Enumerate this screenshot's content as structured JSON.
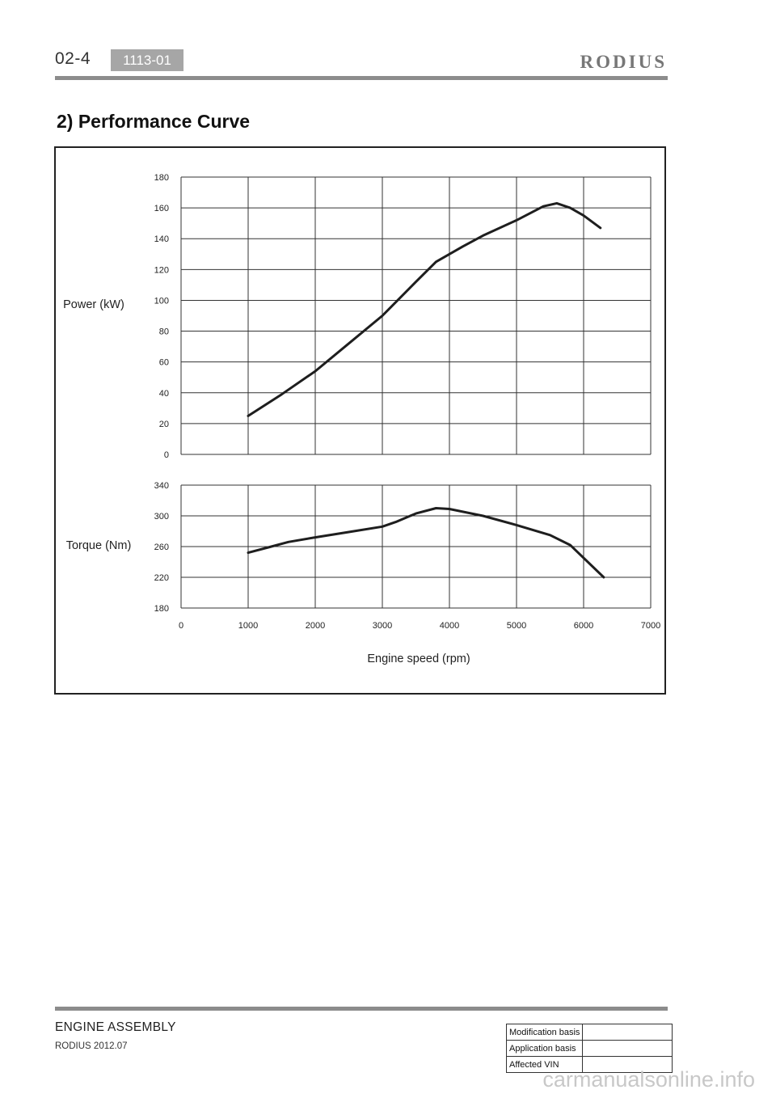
{
  "header": {
    "page_number": "02-4",
    "section_code": "1113-01",
    "brand": "RODIUS"
  },
  "section_title": "2) Performance Curve",
  "footer": {
    "section_name": "ENGINE ASSEMBLY",
    "model_date": "RODIUS 2012.07",
    "basis_table": [
      {
        "label": "Modification basis",
        "value": ""
      },
      {
        "label": "Application basis",
        "value": ""
      },
      {
        "label": "Affected VIN",
        "value": ""
      }
    ]
  },
  "watermark": "carmanualsonline.info",
  "chart_data": [
    {
      "type": "line",
      "ylabel": "Power (kW)",
      "xlabel": "",
      "ylim": [
        0,
        180
      ],
      "yticks": [
        0,
        20,
        40,
        60,
        80,
        100,
        120,
        140,
        160,
        180
      ],
      "xlim": [
        0,
        7000
      ],
      "grid": true,
      "series": [
        {
          "x": [
            1000,
            1500,
            2000,
            2500,
            3000,
            3500,
            3800,
            4200,
            4500,
            5000,
            5400,
            5600,
            5800,
            6000,
            6250
          ],
          "y": [
            25,
            39,
            54,
            72,
            90,
            112,
            125,
            135,
            142,
            152,
            161,
            163,
            160,
            155,
            147
          ]
        }
      ]
    },
    {
      "type": "line",
      "ylabel": "Torque (Nm)",
      "xlabel": "Engine speed (rpm)",
      "ylim": [
        180,
        340
      ],
      "yticks": [
        180,
        220,
        260,
        300,
        340
      ],
      "xlim": [
        0,
        7000
      ],
      "xticks": [
        0,
        1000,
        2000,
        3000,
        4000,
        5000,
        6000,
        7000
      ],
      "grid": true,
      "series": [
        {
          "x": [
            1000,
            1300,
            1600,
            2000,
            2500,
            3000,
            3200,
            3500,
            3800,
            4000,
            4500,
            5000,
            5500,
            5800,
            6300
          ],
          "y": [
            252,
            259,
            266,
            272,
            279,
            286,
            292,
            303,
            310,
            309,
            300,
            288,
            275,
            262,
            220
          ]
        }
      ]
    }
  ]
}
